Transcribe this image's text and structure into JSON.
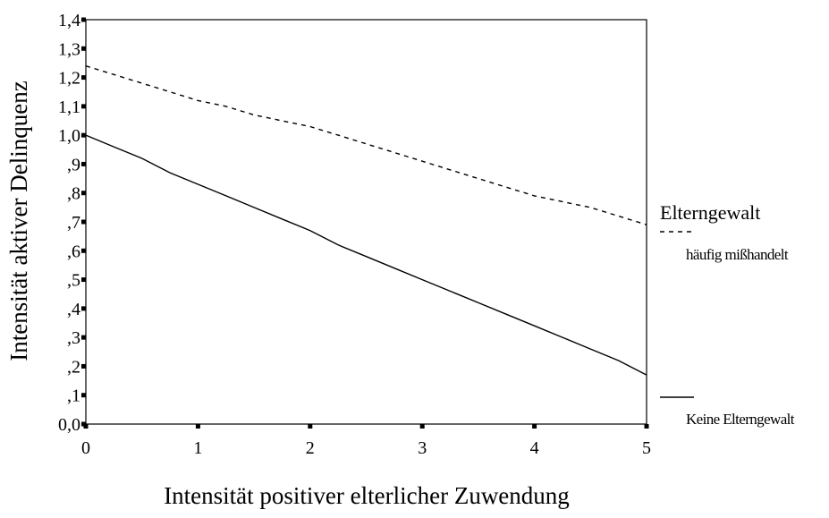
{
  "chart_data": {
    "type": "line",
    "xlabel": "Intensität positiver elterlicher Zuwendung",
    "ylabel": "Intensität aktiver Delinquenz",
    "xlim": [
      0,
      5
    ],
    "ylim": [
      0,
      1.4
    ],
    "x_ticks": [
      "0",
      "1",
      "2",
      "3",
      "4",
      "5"
    ],
    "y_ticks": [
      "0,0",
      ",1",
      ",2",
      ",3",
      ",4",
      ",5",
      ",6",
      ",7",
      ",8",
      ",9",
      "1,0",
      "1,1",
      "1,2",
      "1,3",
      "1,4"
    ],
    "grid": false,
    "legend": {
      "title": "Elterngewalt",
      "placement": "right"
    },
    "series": [
      {
        "name": "häufig mißhandelt",
        "line_style": "dashed",
        "color": "#000000",
        "x": [
          0,
          0.25,
          0.5,
          0.75,
          1,
          1.25,
          1.5,
          1.75,
          2,
          2.25,
          2.5,
          2.75,
          3,
          3.25,
          3.5,
          3.75,
          4,
          4.25,
          4.5,
          4.75,
          5
        ],
        "y": [
          1.24,
          1.21,
          1.18,
          1.15,
          1.12,
          1.1,
          1.07,
          1.05,
          1.03,
          1.0,
          0.97,
          0.94,
          0.91,
          0.88,
          0.85,
          0.82,
          0.79,
          0.77,
          0.75,
          0.72,
          0.69
        ]
      },
      {
        "name": "Keine Elterngewalt",
        "line_style": "solid",
        "color": "#000000",
        "x": [
          0,
          0.25,
          0.5,
          0.75,
          1,
          1.25,
          1.5,
          1.75,
          2,
          2.25,
          2.5,
          2.75,
          3,
          3.25,
          3.5,
          3.75,
          4,
          4.25,
          4.5,
          4.75,
          5
        ],
        "y": [
          1.0,
          0.96,
          0.92,
          0.87,
          0.83,
          0.79,
          0.75,
          0.71,
          0.67,
          0.62,
          0.58,
          0.54,
          0.5,
          0.46,
          0.42,
          0.38,
          0.34,
          0.3,
          0.26,
          0.22,
          0.17
        ]
      }
    ]
  }
}
